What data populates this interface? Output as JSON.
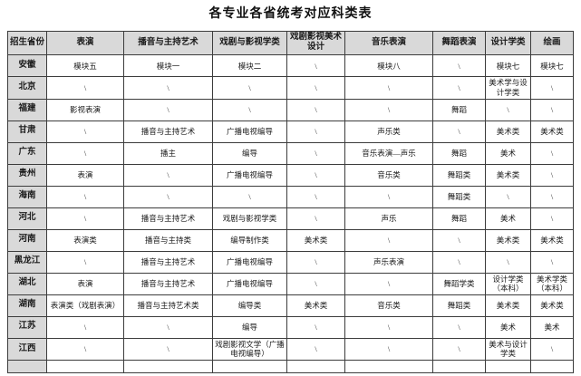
{
  "title": "各专业各省统考对应科类表",
  "table": {
    "columns": [
      "招生省份",
      "表演",
      "播音与主持艺术",
      "戏剧与影视学类",
      "戏剧影视美术设计",
      "音乐表演",
      "舞蹈表演",
      "设计学类",
      "绘画"
    ],
    "rows": [
      {
        "province": "安徽",
        "cells": [
          "模块五",
          "模块一",
          "模块二",
          "\\",
          "模块八",
          "\\",
          "模块七",
          "模块七"
        ]
      },
      {
        "province": "北京",
        "cells": [
          "\\",
          "\\",
          "\\",
          "\\",
          "\\",
          "\\",
          "美术学与设计学类",
          "\\"
        ]
      },
      {
        "province": "福建",
        "cells": [
          "影视表演",
          "\\",
          "\\",
          "\\",
          "\\",
          "舞蹈",
          "\\",
          "\\"
        ]
      },
      {
        "province": "甘肃",
        "cells": [
          "\\",
          "播音与主持艺术",
          "广播电视编导",
          "\\",
          "声乐类",
          "\\",
          "美术类",
          "美术类"
        ]
      },
      {
        "province": "广东",
        "cells": [
          "\\",
          "播主",
          "编导",
          "\\",
          "音乐表演—声乐",
          "舞蹈",
          "美术",
          "\\"
        ]
      },
      {
        "province": "贵州",
        "cells": [
          "表演",
          "\\",
          "广播电视编导",
          "\\",
          "音乐类",
          "舞蹈类",
          "美术类",
          "\\"
        ]
      },
      {
        "province": "海南",
        "cells": [
          "\\",
          "\\",
          "\\",
          "\\",
          "\\",
          "舞蹈类",
          "\\",
          "\\"
        ]
      },
      {
        "province": "河北",
        "cells": [
          "\\",
          "播音与主持艺术",
          "戏剧与影视学类",
          "\\",
          "声乐",
          "舞蹈",
          "美术",
          "\\"
        ]
      },
      {
        "province": "河南",
        "cells": [
          "表演类",
          "播音与主持类",
          "编导制作类",
          "美术类",
          "\\",
          "\\",
          "美术类",
          "美术类"
        ]
      },
      {
        "province": "黑龙江",
        "cells": [
          "\\",
          "播音与主持艺术",
          "广播电视编导",
          "\\",
          "声乐表演",
          "\\",
          "\\",
          "\\"
        ]
      },
      {
        "province": "湖北",
        "cells": [
          "表演",
          "播音与主持艺术",
          "广播电视编导",
          "\\",
          "\\",
          "舞蹈学类",
          "设计学类（本科）",
          "美术学类（本科）"
        ]
      },
      {
        "province": "湖南",
        "cells": [
          "表演类（戏剧表演）",
          "播音与主持艺术类",
          "编导类",
          "美术类",
          "音乐类",
          "舞蹈类",
          "美术类",
          "美术类"
        ]
      },
      {
        "province": "江苏",
        "cells": [
          "\\",
          "\\",
          "编导",
          "\\",
          "\\",
          "\\",
          "美术",
          "美术"
        ]
      },
      {
        "province": "江西",
        "cells": [
          "\\",
          "\\",
          "戏剧影视文学（广播电视编导）",
          "\\",
          "\\",
          "\\",
          "美术与设计学类",
          "\\"
        ]
      }
    ]
  },
  "colors": {
    "header_bg": "#d9d9d9",
    "border": "#3c3c3c",
    "text": "#1a1a1a"
  }
}
